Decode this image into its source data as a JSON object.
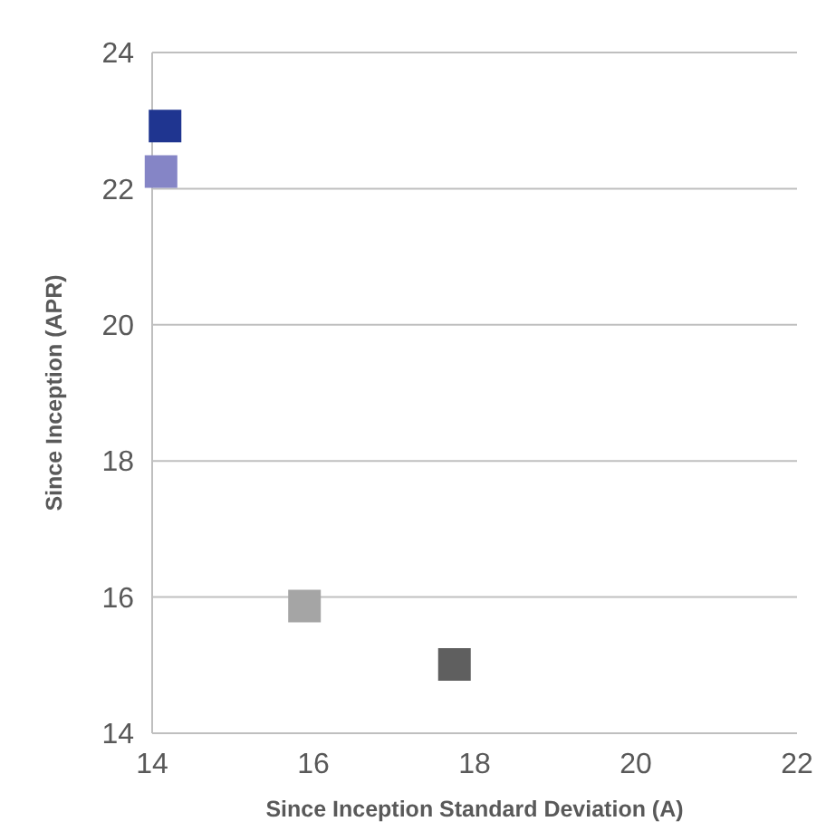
{
  "chart_data": {
    "type": "scatter",
    "xlabel": "Since Inception Standard Deviation (A)",
    "ylabel": "Since Inception (APR)",
    "x": [
      14.16,
      14.11,
      15.89,
      17.75
    ],
    "values": [
      22.92,
      22.25,
      15.87,
      15.01
    ],
    "colors": [
      "#1f3590",
      "#8585c6",
      "#a5a5a5",
      "#5f5f5f"
    ],
    "xlim": [
      14,
      22
    ],
    "xticks": [
      14,
      16,
      18,
      20,
      22
    ],
    "ylim": [
      14,
      24
    ],
    "yticks": [
      14,
      16,
      18,
      20,
      22,
      24
    ],
    "grid": "y",
    "marker": "square"
  }
}
